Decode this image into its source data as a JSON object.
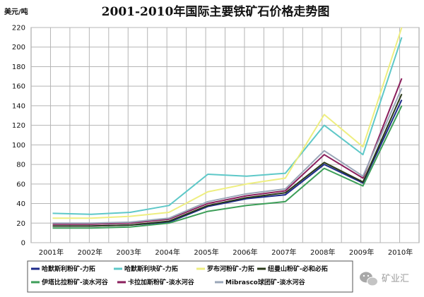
{
  "chart_data": {
    "type": "line",
    "title": "2001-2010年国际主要铁矿石价格走势图",
    "ylabel": "美元/吨",
    "xlabel": "",
    "categories": [
      "2001年",
      "2002年",
      "2003年",
      "2004年",
      "2005年",
      "2006年",
      "2007年",
      "2008年",
      "2009年",
      "2010年"
    ],
    "ylim": [
      0,
      220
    ],
    "yticks": [
      0,
      20,
      40,
      60,
      80,
      100,
      120,
      140,
      160,
      180,
      200,
      220
    ],
    "grid": true,
    "legend_position": "bottom",
    "series": [
      {
        "name": "哈默斯利粉矿-力拓",
        "color": "#1d2a8a",
        "values": [
          17,
          17,
          18,
          21,
          37,
          45,
          49,
          80,
          61,
          146
        ]
      },
      {
        "name": "哈默斯利块矿-力拓",
        "color": "#5ec8c8",
        "values": [
          30,
          29,
          31,
          38,
          70,
          68,
          71,
          120,
          90,
          210
        ]
      },
      {
        "name": "罗布河粉矿-力拓",
        "color": "#eeee80",
        "values": [
          25,
          25,
          27,
          31,
          52,
          60,
          66,
          131,
          98,
          220
        ]
      },
      {
        "name": "纽曼山粉矿-必和必拓",
        "color": "#2a3a1a",
        "values": [
          17,
          17,
          18,
          22,
          38,
          46,
          51,
          82,
          62,
          152
        ]
      },
      {
        "name": "伊塔比拉粉矿-淡水河谷",
        "color": "#3c9e58",
        "values": [
          15,
          15,
          16,
          20,
          32,
          38,
          42,
          76,
          58,
          140
        ]
      },
      {
        "name": "卡拉加斯粉矿-淡水河谷",
        "color": "#8a1e5c",
        "values": [
          19,
          19,
          20,
          24,
          40,
          48,
          53,
          90,
          66,
          168
        ]
      },
      {
        "name": "Mibrasco球团矿-淡水河谷",
        "color": "#9aa6b8",
        "values": [
          20,
          20,
          21,
          25,
          42,
          50,
          55,
          94,
          68,
          158
        ]
      }
    ]
  },
  "watermark": {
    "text": "矿业汇",
    "icon": "wechat-icon"
  }
}
